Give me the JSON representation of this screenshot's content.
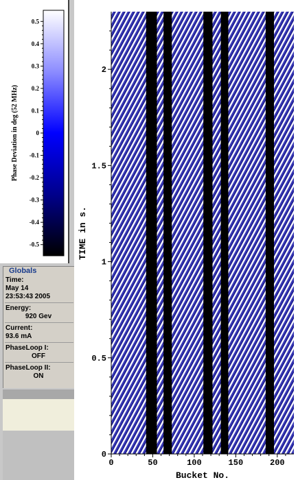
{
  "colorbar": {
    "label": "Phase Deviation in deg (52 MHz)",
    "min": -0.55,
    "max": 0.55,
    "ticks": [
      "0.5",
      "0.4",
      "0.3",
      "0.2",
      "0.1",
      "0",
      "-0.1",
      "-0.2",
      "-0.3",
      "-0.4",
      "-0.5"
    ],
    "tick_values": [
      0.5,
      0.4,
      0.3,
      0.2,
      0.1,
      0,
      -0.1,
      -0.2,
      -0.3,
      -0.4,
      -0.5
    ],
    "colors": [
      "#000000",
      "#00008c",
      "#0000ff",
      "#8c8cff",
      "#ffffff"
    ]
  },
  "globals": {
    "title": "Globals",
    "time_label": "Time:",
    "time_date": "May 14",
    "time_clock": "23:53:43 2005",
    "energy_label": "Energy:",
    "energy_value": "920 Gev",
    "current_label": "Current:",
    "current_value": "93.6 mA",
    "phaseloop1_label": "PhaseLoop I:",
    "phaseloop1_value": "OFF",
    "phaseloop2_label": "PhaseLoop II:",
    "phaseloop2_value": "ON"
  },
  "chart_data": {
    "type": "heatmap",
    "xlabel": "Bucket No.",
    "ylabel": "TIME in s.",
    "xlim": [
      0,
      220
    ],
    "ylim": [
      0,
      2.3
    ],
    "x_ticks": [
      "0",
      "50",
      "100",
      "150",
      "200"
    ],
    "x_tick_values": [
      0,
      50,
      100,
      150,
      200
    ],
    "y_ticks": [
      "0",
      "0.5",
      "1",
      "1.5",
      "2"
    ],
    "y_tick_values": [
      0,
      0.5,
      1,
      1.5,
      2
    ],
    "filled_bucket_ranges": [
      [
        0,
        42
      ],
      [
        55,
        63
      ],
      [
        73,
        111
      ],
      [
        122,
        132
      ],
      [
        141,
        186
      ],
      [
        196,
        220
      ]
    ]
  }
}
